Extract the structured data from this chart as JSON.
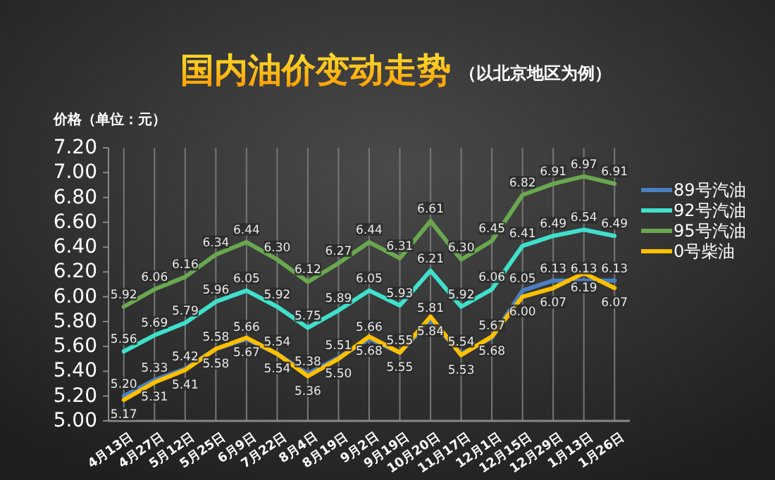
{
  "chart_data": {
    "type": "line",
    "title": "国内油价变动走势",
    "subtitle": "（以北京地区为例）",
    "ylabel": "价格（单位：元）",
    "categories": [
      "4月13日",
      "4月27日",
      "5月12日",
      "5月25日",
      "6月9日",
      "7月22日",
      "8月4日",
      "8月19日",
      "9月2日",
      "9月19日",
      "10月20日",
      "11月17日",
      "12月1日",
      "12月15日",
      "12月29日",
      "1月13日",
      "1月26日"
    ],
    "ylim": [
      5.0,
      7.2
    ],
    "yticks": [
      {
        "value": 5.0,
        "label": "5.00"
      },
      {
        "value": 5.2,
        "label": "5.20"
      },
      {
        "value": 5.4,
        "label": "5.40"
      },
      {
        "value": 5.6,
        "label": "5.60"
      },
      {
        "value": 5.8,
        "label": "5.80"
      },
      {
        "value": 6.0,
        "label": "6.00"
      },
      {
        "value": 6.2,
        "label": "6.20"
      },
      {
        "value": 6.4,
        "label": "6.40"
      },
      {
        "value": 6.6,
        "label": "6.60"
      },
      {
        "value": 6.8,
        "label": "6.80"
      },
      {
        "value": 7.0,
        "label": "7.00"
      },
      {
        "value": 7.2,
        "label": "7.20"
      }
    ],
    "grid": "x",
    "legend": "right",
    "marker": "none",
    "line_style": "solid",
    "series": [
      {
        "name": "89号汽油",
        "color": "#4a7fc1",
        "values": [
          5.2,
          5.33,
          5.42,
          5.58,
          5.66,
          5.54,
          5.38,
          5.51,
          5.66,
          5.55,
          5.81,
          5.54,
          5.67,
          6.05,
          6.13,
          6.13,
          6.13
        ],
        "value_labels": [
          "5.20",
          "5.33",
          "5.42",
          "5.58",
          "5.66",
          "5.54",
          "5.38",
          "5.51",
          "5.66",
          "5.55",
          "5.81",
          "5.54",
          "5.67",
          "6.05",
          "6.13",
          "6.13",
          "6.13"
        ]
      },
      {
        "name": "92号汽油",
        "color": "#3fe0cc",
        "values": [
          5.56,
          5.69,
          5.79,
          5.96,
          6.05,
          5.92,
          5.75,
          5.89,
          6.05,
          5.93,
          6.21,
          5.92,
          6.06,
          6.41,
          6.49,
          6.54,
          6.49
        ],
        "value_labels": [
          "5.56",
          "5.69",
          "5.79",
          "5.96",
          "6.05",
          "5.92",
          "5.75",
          "5.89",
          "6.05",
          "5.93",
          "6.21",
          "5.92",
          "6.06",
          "6.41",
          "6.49",
          "6.54",
          "6.49"
        ]
      },
      {
        "name": "95号汽油",
        "color": "#6aa84f",
        "values": [
          5.92,
          6.06,
          6.16,
          6.34,
          6.44,
          6.3,
          6.12,
          6.27,
          6.44,
          6.31,
          6.61,
          6.3,
          6.45,
          6.82,
          6.91,
          6.97,
          6.91
        ],
        "value_labels": [
          "5.92",
          "6.06",
          "6.16",
          "6.34",
          "6.44",
          "6.30",
          "6.12",
          "6.27",
          "6.44",
          "6.31",
          "6.61",
          "6.30",
          "6.45",
          "6.82",
          "6.91",
          "6.97",
          "6.91"
        ]
      },
      {
        "name": "0号柴油",
        "color": "#ffc000",
        "values": [
          5.17,
          5.31,
          5.41,
          5.58,
          5.67,
          5.54,
          5.36,
          5.5,
          5.68,
          5.55,
          5.84,
          5.53,
          5.68,
          6.0,
          6.07,
          6.19,
          6.07
        ],
        "value_labels": [
          "5.17",
          "5.31",
          "5.41",
          "5.58",
          "5.67",
          "5.54",
          "5.36",
          "5.50",
          "5.68",
          "5.55",
          "5.84",
          "5.53",
          "5.68",
          "6.00",
          "6.07",
          "6.19",
          "6.07"
        ]
      }
    ]
  }
}
